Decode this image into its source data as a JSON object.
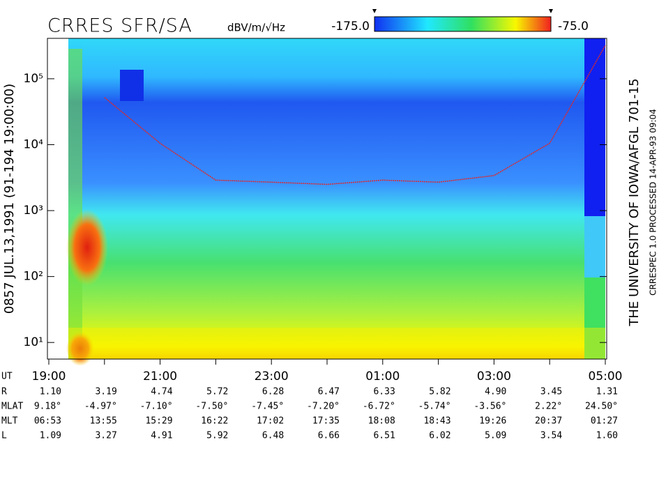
{
  "chart_data": {
    "type": "spectrogram",
    "title": "CRRES SFR/SA",
    "colorbar": {
      "unit": "dBV/m/√Hz",
      "clim": [
        {
          "value": -175,
          "label": "-175.0"
        },
        {
          "value": -75,
          "label": "-75.0"
        }
      ]
    },
    "ylabel": "0857   JUL.13,1991   (91-194 19:00:00)",
    "right_title": "THE UNIVERSITY OF IOWA/AFGL 701-15",
    "right_note": "CRRESPEC 1.0   PROCESSED 14-APR-93   09:04",
    "log_y": true,
    "ylim": [
      5.6,
      410000
    ],
    "yticks": [
      {
        "value": 10,
        "label": "10¹"
      },
      {
        "value": 100,
        "label": "10²"
      },
      {
        "value": 1000,
        "label": "10³"
      },
      {
        "value": 10000,
        "label": "10⁴"
      },
      {
        "value": 100000,
        "label": "10⁵"
      }
    ],
    "x": [
      "19:00",
      "20:00",
      "21:00",
      "22:00",
      "23:00",
      "00:00",
      "01:00",
      "02:00",
      "03:00",
      "04:00",
      "05:00"
    ],
    "xtick_labels": [
      "19:00",
      null,
      "21:00",
      null,
      "23:00",
      null,
      "01:00",
      null,
      "03:00",
      null,
      "05:00"
    ],
    "series": [
      {
        "color": "#e02828",
        "values": [
          null,
          52000,
          10500,
          2900,
          2700,
          2500,
          2900,
          2700,
          3400,
          10500,
          320000
        ]
      }
    ],
    "ephemeris": [
      {
        "label": "UT",
        "values": null
      },
      {
        "label": "R",
        "values": [
          "1.10",
          "3.19",
          "4.74",
          "5.72",
          "6.28",
          "6.47",
          "6.33",
          "5.82",
          "4.90",
          "3.45",
          "1.31"
        ]
      },
      {
        "label": "MLAT",
        "values": [
          "9.18°",
          "-4.97°",
          "-7.10°",
          "-7.50°",
          "-7.45°",
          "-7.20°",
          "-6.72°",
          "-5.74°",
          "-3.56°",
          "2.22°",
          "24.50°"
        ]
      },
      {
        "label": "MLT",
        "values": [
          "06:53",
          "13:55",
          "15:29",
          "16:22",
          "17:02",
          "17:35",
          "18:08",
          "18:43",
          "19:26",
          "20:37",
          "01:27"
        ]
      },
      {
        "label": "L",
        "values": [
          "1.09",
          "3.27",
          "4.91",
          "5.92",
          "6.48",
          "6.66",
          "6.51",
          "6.02",
          "5.09",
          "3.54",
          "1.60"
        ]
      }
    ]
  }
}
